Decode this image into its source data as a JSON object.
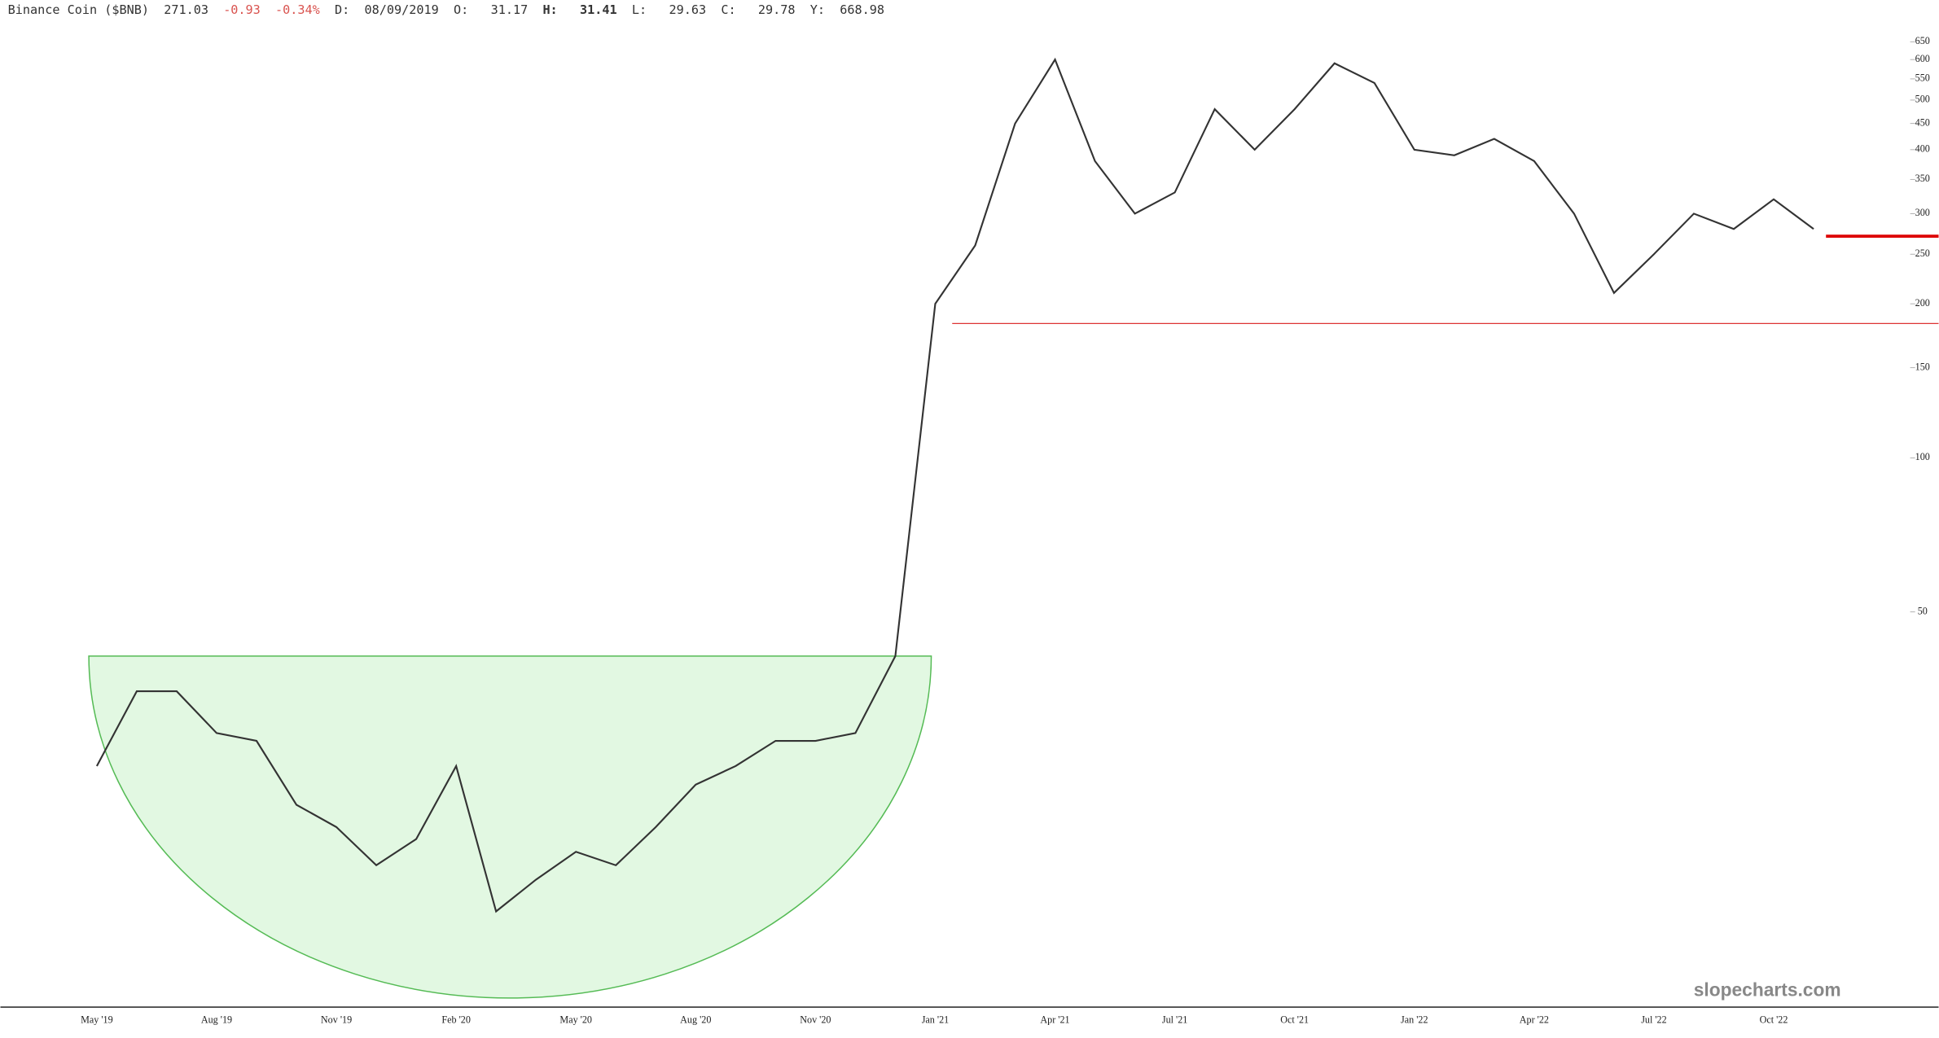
{
  "header": {
    "name": "Binance Coin ($BNB)",
    "last": "271.03",
    "change": "-0.93",
    "change_pct": "-0.34%",
    "date_label": "D:",
    "date": "08/09/2019",
    "open_label": "O:",
    "open": "31.17",
    "high_label": "H:",
    "high": "31.41",
    "low_label": "L:",
    "low": "29.63",
    "close_label": "C:",
    "close": "29.78",
    "y_label": "Y:",
    "y": "668.98"
  },
  "chart_data": {
    "type": "line",
    "log_scale": true,
    "color": "#333333",
    "categories": [
      "May '19",
      null,
      null,
      "Aug '19",
      null,
      null,
      "Nov '19",
      null,
      null,
      "Feb '20",
      null,
      null,
      "May '20",
      null,
      null,
      "Aug '20",
      null,
      null,
      "Nov '20",
      null,
      null,
      "Jan '21",
      null,
      null,
      "Apr '21",
      null,
      null,
      "Jul '21",
      null,
      null,
      "Oct '21",
      null,
      null,
      "Jan '22",
      null,
      null,
      "Apr '22",
      null,
      null,
      "Jul '22",
      null,
      null,
      "Oct '22",
      null
    ],
    "values": [
      25,
      35,
      35,
      29,
      28,
      21,
      19,
      16,
      18,
      25,
      13,
      15,
      17,
      16,
      19,
      23,
      25,
      28,
      28,
      29,
      41,
      200,
      260,
      450,
      600,
      380,
      300,
      330,
      480,
      400,
      480,
      590,
      540,
      400,
      390,
      420,
      380,
      300,
      210,
      250,
      300,
      280,
      320,
      280
    ],
    "ylim": [
      8.5,
      780
    ],
    "yticks": [
      50,
      100,
      150,
      200,
      250,
      300,
      350,
      400,
      450,
      500,
      550,
      600,
      650
    ],
    "support_level": 183,
    "current_price": 271.03,
    "cup": {
      "rim": 41,
      "bottom": 8.8,
      "start": -0.2,
      "end": 20.9
    },
    "watermark": "slopecharts.com"
  }
}
